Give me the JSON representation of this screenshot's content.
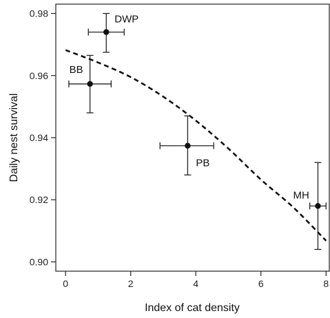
{
  "chart_data": {
    "type": "scatter",
    "title": "",
    "xlabel": "Index of cat density",
    "ylabel": "Daily nest survival",
    "xlim": [
      -0.3,
      8.1
    ],
    "ylim": [
      0.897,
      0.983
    ],
    "x_ticks": [
      0,
      2,
      4,
      6,
      8
    ],
    "x_tick_labels": [
      "0",
      "2",
      "4",
      "6",
      "8"
    ],
    "y_ticks": [
      0.9,
      0.92,
      0.94,
      0.96,
      0.98
    ],
    "y_tick_labels": [
      "0.90",
      "0.92",
      "0.94",
      "0.96",
      "0.98"
    ],
    "grid": false,
    "points": [
      {
        "label": "DWP",
        "x": 1.25,
        "y": 0.974,
        "x_lo": 0.7,
        "x_hi": 1.8,
        "y_lo": 0.9675,
        "y_hi": 0.98
      },
      {
        "label": "BB",
        "x": 0.75,
        "y": 0.9573,
        "x_lo": 0.1,
        "x_hi": 1.4,
        "y_lo": 0.948,
        "y_hi": 0.9665
      },
      {
        "label": "PB",
        "x": 3.75,
        "y": 0.9374,
        "x_lo": 2.9,
        "x_hi": 4.55,
        "y_lo": 0.928,
        "y_hi": 0.947
      },
      {
        "label": "MH",
        "x": 7.75,
        "y": 0.918,
        "x_lo": 7.5,
        "x_hi": 8.0,
        "y_lo": 0.904,
        "y_hi": 0.932
      }
    ],
    "fit_curve": {
      "style": "dashed",
      "x": [
        0,
        1,
        2,
        3,
        4,
        5,
        6,
        7,
        8
      ],
      "y": [
        0.9682,
        0.9642,
        0.9595,
        0.9532,
        0.9455,
        0.9365,
        0.9265,
        0.9175,
        0.9068
      ]
    }
  }
}
